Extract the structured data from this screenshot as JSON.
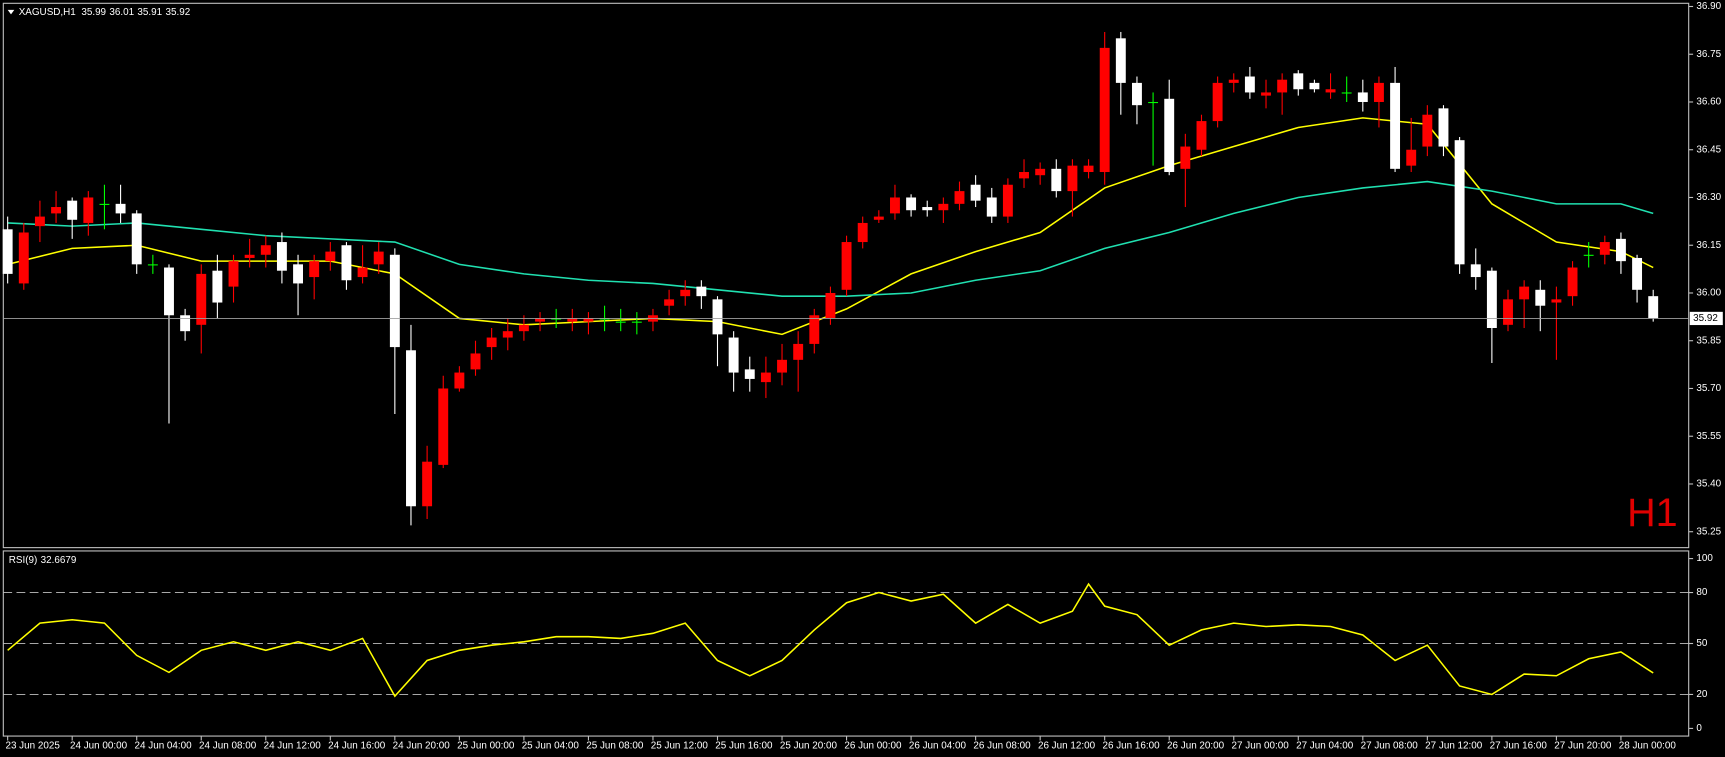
{
  "chart_data": [
    {
      "type": "candlestick",
      "title": "XAGUSD,H1",
      "watermark": "H1",
      "categories": [
        "23 Jun 2025",
        null,
        null,
        null,
        "24 Jun 00:00",
        null,
        null,
        null,
        "24 Jun 04:00",
        null,
        null,
        null,
        "24 Jun 08:00",
        null,
        null,
        null,
        "24 Jun 12:00",
        null,
        null,
        null,
        "24 Jun 16:00",
        null,
        null,
        null,
        "24 Jun 20:00",
        null,
        null,
        null,
        "25 Jun 00:00",
        null,
        null,
        null,
        "25 Jun 04:00",
        null,
        null,
        null,
        "25 Jun 08:00",
        null,
        null,
        null,
        "25 Jun 12:00",
        null,
        null,
        null,
        "25 Jun 16:00",
        null,
        null,
        null,
        "25 Jun 20:00",
        null,
        null,
        null,
        "26 Jun 00:00",
        null,
        null,
        null,
        "26 Jun 04:00",
        null,
        null,
        null,
        "26 Jun 08:00",
        null,
        null,
        null,
        "26 Jun 12:00",
        null,
        null,
        null,
        "26 Jun 16:00",
        null,
        null,
        null,
        "26 Jun 20:00",
        null,
        null,
        null,
        "27 Jun 00:00",
        null,
        null,
        null,
        "27 Jun 04:00",
        null,
        null,
        null,
        "27 Jun 08:00",
        null,
        null,
        null,
        "27 Jun 12:00",
        null,
        null,
        null,
        "27 Jun 16:00",
        null,
        null,
        null,
        "27 Jun 20:00",
        null,
        null,
        null,
        "28 Jun 00:00",
        null,
        null
      ],
      "open": [
        36.2,
        36.03,
        36.21,
        36.25,
        36.29,
        36.22,
        36.28,
        36.28,
        36.25,
        36.09,
        36.08,
        35.93,
        35.9,
        36.07,
        36.02,
        36.11,
        36.12,
        36.16,
        36.09,
        36.05,
        36.1,
        36.15,
        36.05,
        36.09,
        36.12,
        35.82,
        35.33,
        35.46,
        35.7,
        35.76,
        35.83,
        35.86,
        35.88,
        35.91,
        35.92,
        35.91,
        35.91,
        35.92,
        35.91,
        35.91,
        35.91,
        35.96,
        35.99,
        36.02,
        35.98,
        35.86,
        35.76,
        35.72,
        35.75,
        35.79,
        35.84,
        35.92,
        36.01,
        36.16,
        36.23,
        36.25,
        36.3,
        36.27,
        36.26,
        36.28,
        36.34,
        36.3,
        36.24,
        36.36,
        36.37,
        36.39,
        36.32,
        36.38,
        36.38,
        36.8,
        36.66,
        36.6,
        36.61,
        36.39,
        36.45,
        36.54,
        36.66,
        36.68,
        36.62,
        36.63,
        36.69,
        36.66,
        36.63,
        36.63,
        36.63,
        36.6,
        36.66,
        36.4,
        36.46,
        36.58,
        36.48,
        36.09,
        36.07,
        35.9,
        35.98,
        36.01,
        35.97,
        35.99,
        36.12,
        36.12,
        36.17,
        36.11,
        35.99
      ],
      "high": [
        36.24,
        36.22,
        36.29,
        36.32,
        36.3,
        36.32,
        36.34,
        36.34,
        36.26,
        36.12,
        36.09,
        35.95,
        36.09,
        36.12,
        36.12,
        36.17,
        36.18,
        36.19,
        36.12,
        36.12,
        36.16,
        36.16,
        36.15,
        36.16,
        36.14,
        35.9,
        35.52,
        35.74,
        35.77,
        35.85,
        35.89,
        35.92,
        35.93,
        35.94,
        35.95,
        35.95,
        35.94,
        35.96,
        35.95,
        35.94,
        35.95,
        36.01,
        36.04,
        36.04,
        35.99,
        35.88,
        35.8,
        35.8,
        35.84,
        35.88,
        35.95,
        36.02,
        36.18,
        36.24,
        36.26,
        36.34,
        36.31,
        36.29,
        36.3,
        36.35,
        36.37,
        36.33,
        36.36,
        36.42,
        36.41,
        36.42,
        36.42,
        36.42,
        36.82,
        36.82,
        36.68,
        36.63,
        36.67,
        36.5,
        36.56,
        36.68,
        36.69,
        36.71,
        36.67,
        36.69,
        36.7,
        36.67,
        36.69,
        36.68,
        36.67,
        36.68,
        36.71,
        36.55,
        36.59,
        36.59,
        36.49,
        36.14,
        36.08,
        36.01,
        36.04,
        36.04,
        36.02,
        36.1,
        36.16,
        36.18,
        36.19,
        36.12,
        36.01
      ],
      "low": [
        36.03,
        36.01,
        36.16,
        36.22,
        36.17,
        36.18,
        36.2,
        36.22,
        36.06,
        36.06,
        35.59,
        35.85,
        35.81,
        35.92,
        35.97,
        36.08,
        36.08,
        36.03,
        35.93,
        35.98,
        36.07,
        36.01,
        36.03,
        36.06,
        35.62,
        35.27,
        35.29,
        35.45,
        35.69,
        35.74,
        35.79,
        35.82,
        35.85,
        35.88,
        35.89,
        35.88,
        35.87,
        35.88,
        35.88,
        35.87,
        35.88,
        35.93,
        35.96,
        35.95,
        35.77,
        35.69,
        35.69,
        35.67,
        35.71,
        35.69,
        35.81,
        35.9,
        35.99,
        36.14,
        36.22,
        36.23,
        36.24,
        36.24,
        36.22,
        36.26,
        36.27,
        36.22,
        36.22,
        36.33,
        36.34,
        36.3,
        36.24,
        36.36,
        36.34,
        36.56,
        36.53,
        36.4,
        36.37,
        36.27,
        36.43,
        36.52,
        36.63,
        36.61,
        36.58,
        36.56,
        36.62,
        36.63,
        36.61,
        36.6,
        36.57,
        36.52,
        36.38,
        36.38,
        36.43,
        36.43,
        36.06,
        36.01,
        35.78,
        35.88,
        35.89,
        35.88,
        35.79,
        35.96,
        36.08,
        36.09,
        36.06,
        35.97,
        35.91
      ],
      "close": [
        36.06,
        36.19,
        36.24,
        36.27,
        36.23,
        36.3,
        36.28,
        36.25,
        36.09,
        36.09,
        35.93,
        35.88,
        36.06,
        35.97,
        36.1,
        36.12,
        36.15,
        36.07,
        36.03,
        36.1,
        36.13,
        36.04,
        36.08,
        36.13,
        35.83,
        35.33,
        35.47,
        35.7,
        35.75,
        35.81,
        35.86,
        35.88,
        35.9,
        35.92,
        35.92,
        35.92,
        35.92,
        35.92,
        35.91,
        35.91,
        35.93,
        35.98,
        36.01,
        35.99,
        35.87,
        35.75,
        35.73,
        35.75,
        35.79,
        35.84,
        35.93,
        36.0,
        36.16,
        36.22,
        36.24,
        36.3,
        36.26,
        36.26,
        36.28,
        36.32,
        36.29,
        36.24,
        36.34,
        36.38,
        36.39,
        36.32,
        36.4,
        36.4,
        36.77,
        36.66,
        36.59,
        36.6,
        36.38,
        36.46,
        36.54,
        36.66,
        36.67,
        36.63,
        36.63,
        36.67,
        36.64,
        36.64,
        36.64,
        36.63,
        36.6,
        36.66,
        36.39,
        36.45,
        36.56,
        36.46,
        36.09,
        36.05,
        35.89,
        35.98,
        36.02,
        35.96,
        35.98,
        36.08,
        36.12,
        36.16,
        36.1,
        36.01,
        35.92
      ],
      "up_color": "#ff0000",
      "down_color": "#ffffff",
      "doji_color": "#00ff00",
      "lines": [
        {
          "color": "#ffff00",
          "x": [
            0,
            4,
            8,
            12,
            16,
            20,
            24,
            28,
            32,
            36,
            40,
            44,
            48,
            52,
            56,
            60,
            64,
            68,
            72,
            76,
            80,
            84,
            88,
            92,
            96,
            100,
            102
          ],
          "values": [
            36.09,
            36.14,
            36.15,
            36.1,
            36.1,
            36.1,
            36.06,
            35.92,
            35.9,
            35.91,
            35.92,
            35.91,
            35.87,
            35.95,
            36.06,
            36.13,
            36.19,
            36.33,
            36.4,
            36.46,
            36.52,
            36.55,
            36.53,
            36.28,
            36.16,
            36.13,
            36.08
          ]
        },
        {
          "color": "#20e0b0",
          "x": [
            0,
            4,
            8,
            12,
            16,
            20,
            24,
            28,
            32,
            36,
            40,
            44,
            48,
            52,
            56,
            60,
            64,
            68,
            72,
            76,
            80,
            84,
            88,
            92,
            96,
            100,
            102
          ],
          "values": [
            36.22,
            36.21,
            36.22,
            36.2,
            36.18,
            36.17,
            36.16,
            36.09,
            36.06,
            36.04,
            36.03,
            36.01,
            35.99,
            35.99,
            36.0,
            36.04,
            36.07,
            36.14,
            36.19,
            36.25,
            36.3,
            36.33,
            36.35,
            36.32,
            36.28,
            36.28,
            36.25
          ]
        }
      ],
      "last_price_line_color": "#a0a0a0",
      "xlim": [
        -0.27,
        104.2
      ],
      "ylim": [
        35.2,
        36.91
      ],
      "yticks": [
        {
          "value": 36.9,
          "label": "36.90"
        },
        36.75,
        {
          "value": 36.6,
          "label": "36.60"
        },
        36.45,
        {
          "value": 36.3,
          "label": "36.30"
        },
        36.15,
        {
          "value": 36.0,
          "label": "36.00"
        },
        35.85,
        {
          "value": 35.7,
          "label": "35.70"
        },
        35.55,
        {
          "value": 35.4,
          "label": "35.40"
        },
        35.25
      ]
    },
    {
      "type": "line",
      "series": [
        {
          "name": "RSI(9)",
          "color": "#ffff00",
          "x": [
            0,
            2,
            4,
            6,
            8,
            10,
            12,
            14,
            16,
            18,
            20,
            22,
            24,
            26,
            28,
            30,
            32,
            34,
            36,
            38,
            40,
            42,
            44,
            46,
            48,
            50,
            52,
            54,
            56,
            58,
            60,
            62,
            64,
            66,
            67,
            68,
            70,
            72,
            74,
            76,
            78,
            80,
            82,
            84,
            86,
            88,
            90,
            92,
            94,
            96,
            98,
            100,
            102
          ],
          "values": [
            46,
            62,
            64,
            62,
            43,
            33,
            46,
            51,
            46,
            51,
            46,
            53,
            19,
            40,
            46,
            49,
            51,
            54,
            54,
            53,
            56,
            62,
            40,
            31,
            40,
            58,
            74,
            80,
            75,
            79,
            62,
            73,
            62,
            69,
            85,
            72,
            67,
            49,
            58,
            62,
            60,
            61,
            60,
            55,
            40,
            49,
            25,
            20,
            32,
            31,
            41,
            45,
            32.6679
          ]
        }
      ],
      "xlim": [
        -0.27,
        104.2
      ],
      "ylim": [
        -4.5,
        104.5
      ],
      "yticks": [
        0,
        20,
        50,
        80,
        100
      ],
      "level_lines": [
        20,
        50,
        80
      ]
    }
  ]
}
